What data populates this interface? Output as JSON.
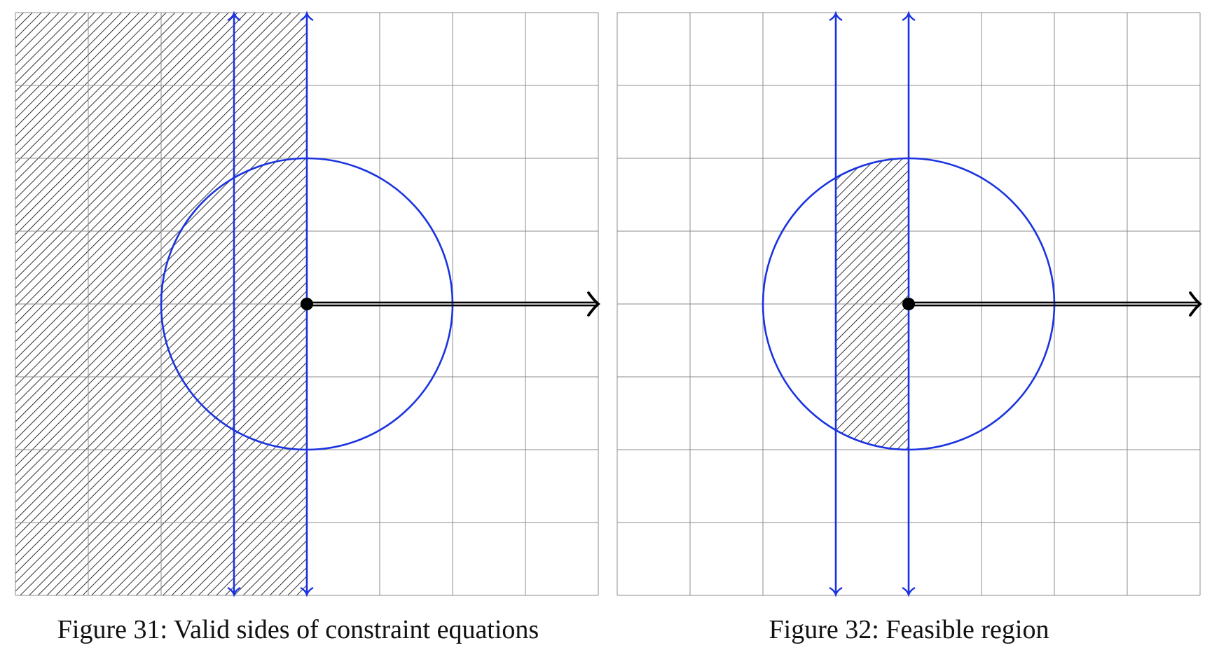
{
  "figures": [
    {
      "caption": "Figure 31:  Valid sides of constraint equations",
      "region": "left-half-plane",
      "colors": {
        "grid": "#8c8c8c",
        "constraint": "#1a33e0",
        "axis": "#000000",
        "hatch": "#000000"
      }
    },
    {
      "caption": "Figure 32:  Feasible region",
      "region": "strip-inside-circle",
      "colors": {
        "grid": "#8c8c8c",
        "constraint": "#1a33e0",
        "axis": "#000000",
        "hatch": "#000000"
      }
    }
  ]
}
